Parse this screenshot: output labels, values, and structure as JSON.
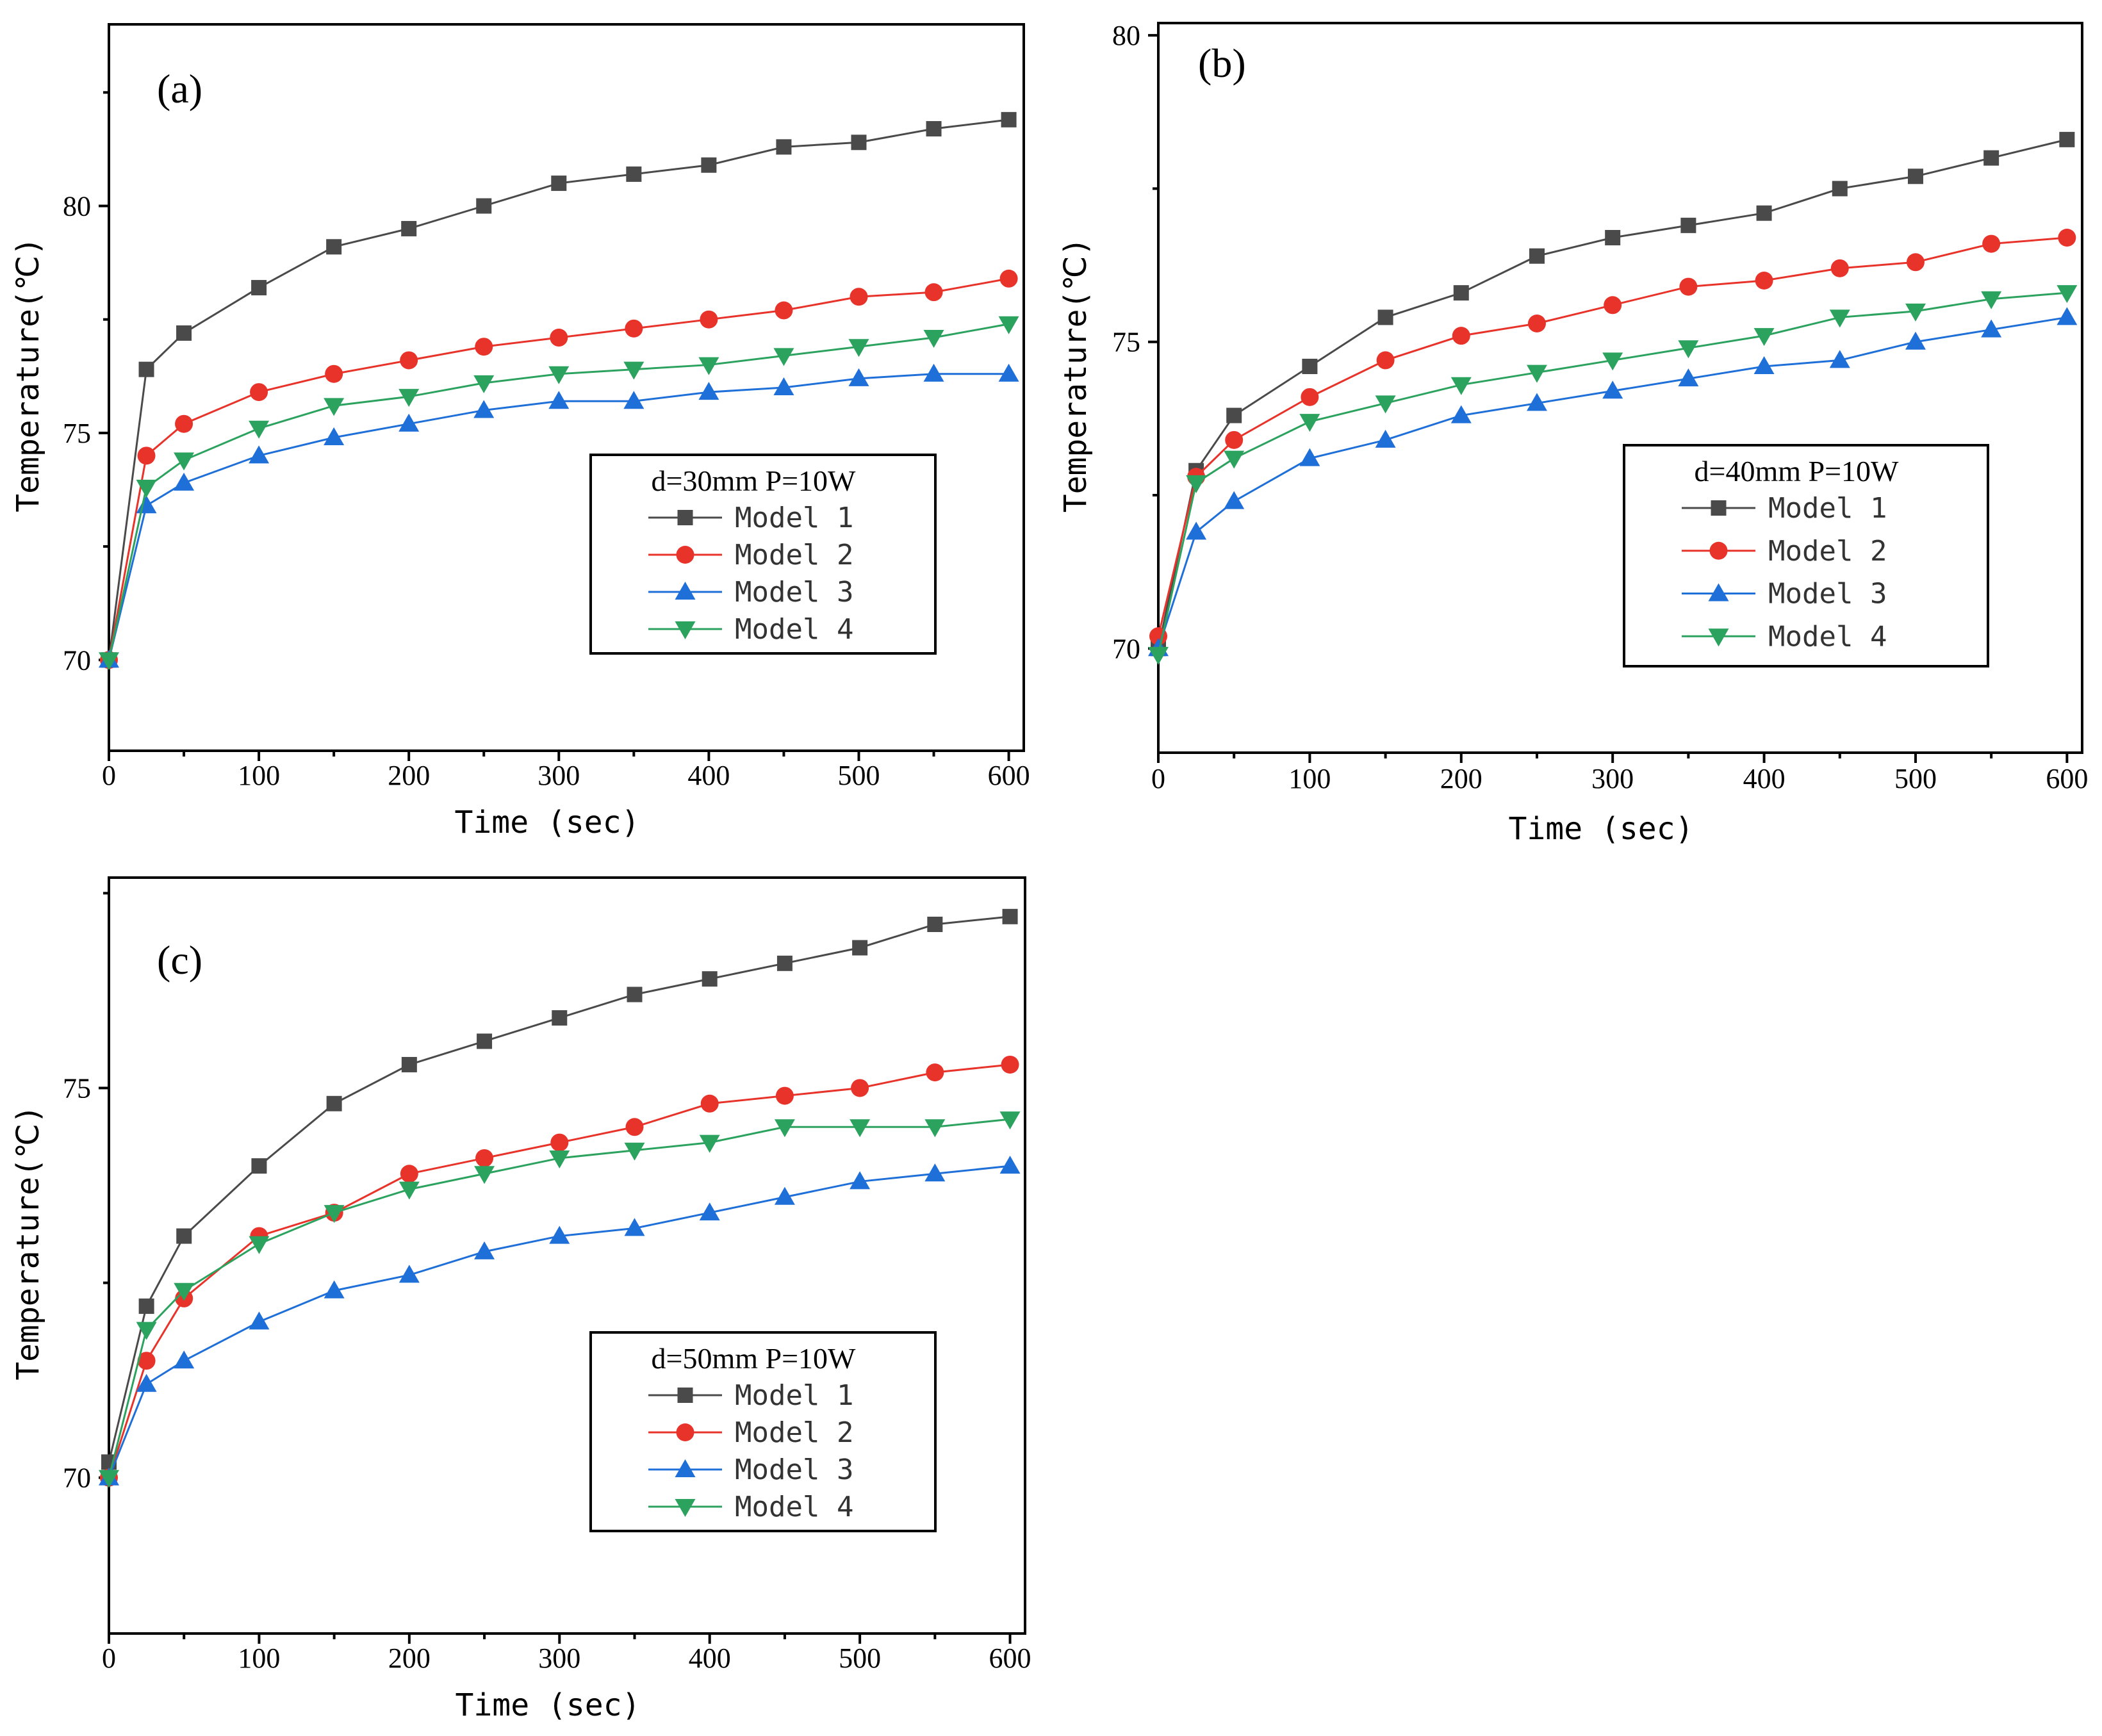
{
  "colors": {
    "Model 1": "#4a4a4a",
    "Model 2": "#e8332a",
    "Model 3": "#1f6fd8",
    "Model 4": "#2ca25f"
  },
  "markers": {
    "Model 1": "square",
    "Model 2": "circle",
    "Model 3": "triangle-up",
    "Model 4": "triangle-down"
  },
  "chart_data": [
    {
      "type": "line",
      "panel_label": "(a)",
      "legend_title": "d=30mm  P=10W",
      "xlabel": "Time  (sec)",
      "ylabel": "Temperature(℃)",
      "xlim": [
        0,
        610
      ],
      "ylim": [
        68,
        84
      ],
      "xticks": [
        0,
        100,
        200,
        300,
        400,
        500,
        600
      ],
      "yticks": [
        70,
        75,
        80
      ],
      "x": [
        0,
        25,
        50,
        100,
        150,
        200,
        250,
        300,
        350,
        400,
        450,
        500,
        550,
        600
      ],
      "series": [
        {
          "name": "Model 1",
          "values": [
            70,
            76.4,
            77.2,
            78.2,
            79.1,
            79.5,
            80.0,
            80.5,
            80.7,
            80.9,
            81.3,
            81.4,
            81.7,
            81.9
          ]
        },
        {
          "name": "Model 2",
          "values": [
            70,
            74.5,
            75.2,
            75.9,
            76.3,
            76.6,
            76.9,
            77.1,
            77.3,
            77.5,
            77.7,
            78.0,
            78.1,
            78.4
          ]
        },
        {
          "name": "Model 3",
          "values": [
            70,
            73.4,
            73.9,
            74.5,
            74.9,
            75.2,
            75.5,
            75.7,
            75.7,
            75.9,
            76.0,
            76.2,
            76.3,
            76.3
          ]
        },
        {
          "name": "Model 4",
          "values": [
            70,
            73.8,
            74.4,
            75.1,
            75.6,
            75.8,
            76.1,
            76.3,
            76.4,
            76.5,
            76.7,
            76.9,
            77.1,
            77.4
          ]
        }
      ]
    },
    {
      "type": "line",
      "panel_label": "(b)",
      "legend_title": "d=40mm  P=10W",
      "xlabel": "Time  (sec)",
      "ylabel": "Temperature(℃)",
      "xlim": [
        0,
        610
      ],
      "ylim": [
        68.3,
        80.2
      ],
      "xticks": [
        0,
        100,
        200,
        300,
        400,
        500,
        600
      ],
      "yticks": [
        70,
        75,
        80
      ],
      "x": [
        0,
        25,
        50,
        100,
        150,
        200,
        250,
        300,
        350,
        400,
        450,
        500,
        550,
        600
      ],
      "series": [
        {
          "name": "Model 1",
          "values": [
            70.0,
            72.9,
            73.8,
            74.6,
            75.4,
            75.8,
            76.4,
            76.7,
            76.9,
            77.1,
            77.5,
            77.7,
            78.0,
            78.3
          ]
        },
        {
          "name": "Model 2",
          "values": [
            70.2,
            72.8,
            73.4,
            74.1,
            74.7,
            75.1,
            75.3,
            75.6,
            75.9,
            76.0,
            76.2,
            76.3,
            76.6,
            76.7
          ]
        },
        {
          "name": "Model 3",
          "values": [
            70.0,
            71.9,
            72.4,
            73.1,
            73.4,
            73.8,
            74.0,
            74.2,
            74.4,
            74.6,
            74.7,
            75.0,
            75.2,
            75.4
          ]
        },
        {
          "name": "Model 4",
          "values": [
            69.9,
            72.7,
            73.1,
            73.7,
            74.0,
            74.3,
            74.5,
            74.7,
            74.9,
            75.1,
            75.4,
            75.5,
            75.7,
            75.8
          ]
        }
      ]
    },
    {
      "type": "line",
      "panel_label": "(c)",
      "legend_title": "d=50mm  P=10W",
      "xlabel": "Time  (sec)",
      "ylabel": "Temperature(℃)",
      "xlim": [
        0,
        610
      ],
      "ylim": [
        68.0,
        77.7
      ],
      "xticks": [
        0,
        100,
        200,
        300,
        400,
        500,
        600
      ],
      "yticks": [
        70,
        75
      ],
      "x": [
        0,
        25,
        50,
        100,
        150,
        200,
        250,
        300,
        350,
        400,
        450,
        500,
        550,
        600
      ],
      "series": [
        {
          "name": "Model 1",
          "values": [
            70.2,
            72.2,
            73.1,
            74.0,
            74.8,
            75.3,
            75.6,
            75.9,
            76.2,
            76.4,
            76.6,
            76.8,
            77.1,
            77.2
          ]
        },
        {
          "name": "Model 2",
          "values": [
            70.0,
            71.5,
            72.3,
            73.1,
            73.4,
            73.9,
            74.1,
            74.3,
            74.5,
            74.8,
            74.9,
            75.0,
            75.2,
            75.3
          ]
        },
        {
          "name": "Model 3",
          "values": [
            70.0,
            71.2,
            71.5,
            72.0,
            72.4,
            72.6,
            72.9,
            73.1,
            73.2,
            73.4,
            73.6,
            73.8,
            73.9,
            74.0
          ]
        },
        {
          "name": "Model 4",
          "values": [
            70.0,
            71.9,
            72.4,
            73.0,
            73.4,
            73.7,
            73.9,
            74.1,
            74.2,
            74.3,
            74.5,
            74.5,
            74.5,
            74.6
          ]
        }
      ]
    }
  ]
}
